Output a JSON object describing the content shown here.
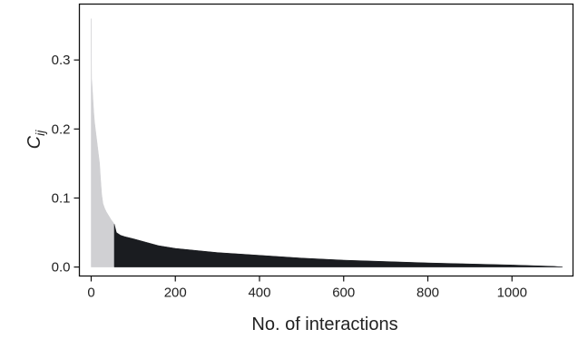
{
  "chart_data": {
    "type": "area",
    "title": "",
    "xlabel": "No. of interactions",
    "ylabel_main": "C",
    "ylabel_sub": "ij",
    "xlim": [
      -28,
      1145
    ],
    "ylim": [
      -0.013,
      0.381
    ],
    "x_ticks": [
      0,
      200,
      400,
      600,
      800,
      1000
    ],
    "x_tick_labels": [
      "0",
      "200",
      "400",
      "600",
      "800",
      "1000"
    ],
    "y_ticks": [
      0.0,
      0.1,
      0.2,
      0.3
    ],
    "y_tick_labels": [
      "0.0",
      "0.1",
      "0.2",
      "0.3"
    ],
    "grid": false,
    "legend": "none",
    "series": [
      {
        "color": "#d0d0d3",
        "x": [
          0,
          1,
          2,
          4,
          6,
          8,
          10,
          12,
          14,
          16,
          18,
          20,
          22,
          25,
          28,
          32,
          36,
          40,
          44,
          48,
          52,
          55
        ],
        "y": [
          0.36,
          0.272,
          0.265,
          0.245,
          0.225,
          0.21,
          0.2,
          0.19,
          0.18,
          0.17,
          0.16,
          0.15,
          0.13,
          0.105,
          0.092,
          0.085,
          0.08,
          0.076,
          0.072,
          0.068,
          0.065,
          0.062
        ]
      },
      {
        "color": "#1a1c20",
        "x": [
          55,
          60,
          70,
          80,
          100,
          130,
          160,
          200,
          250,
          300,
          400,
          500,
          600,
          700,
          800,
          900,
          1000,
          1050,
          1100,
          1120
        ],
        "y": [
          0.062,
          0.05,
          0.046,
          0.044,
          0.041,
          0.036,
          0.031,
          0.027,
          0.024,
          0.021,
          0.017,
          0.013,
          0.01,
          0.008,
          0.006,
          0.0045,
          0.003,
          0.002,
          0.001,
          0.0
        ]
      }
    ]
  }
}
